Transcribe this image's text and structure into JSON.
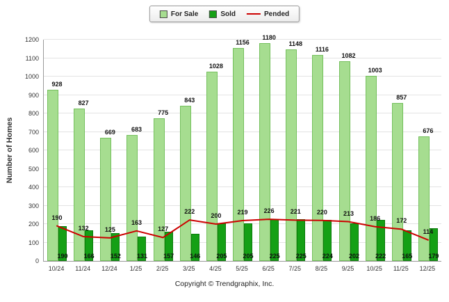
{
  "chart_data": {
    "type": "bar",
    "title": "",
    "categories": [
      "10/24",
      "11/24",
      "12/24",
      "1/25",
      "2/25",
      "3/25",
      "4/25",
      "5/25",
      "6/25",
      "7/25",
      "8/25",
      "9/25",
      "10/25",
      "11/25",
      "12/25"
    ],
    "series": [
      {
        "name": "For Sale",
        "type": "bar",
        "color": "#A6DD90",
        "border": "#74C05C",
        "values": [
          928,
          827,
          669,
          683,
          775,
          843,
          1028,
          1156,
          1180,
          1148,
          1116,
          1082,
          1003,
          857,
          676
        ]
      },
      {
        "name": "Sold",
        "type": "bar",
        "color": "#15A015",
        "border": "#0C7A0C",
        "values": [
          190,
          166,
          152,
          131,
          157,
          146,
          205,
          205,
          225,
          225,
          224,
          202,
          222,
          165,
          179
        ]
      },
      {
        "name": "Pended",
        "type": "line",
        "color": "#CC0000",
        "values": [
          190,
          132,
          125,
          163,
          127,
          222,
          200,
          219,
          226,
          221,
          220,
          213,
          186,
          172,
          114
        ]
      }
    ],
    "xlabel": "",
    "ylabel": "Number of Homes",
    "ylim": [
      0,
      1200
    ],
    "ytick_step": 100,
    "grid": true,
    "legend_position": "top"
  },
  "footer": {
    "text": "Copyright © Trendgraphix, Inc."
  }
}
